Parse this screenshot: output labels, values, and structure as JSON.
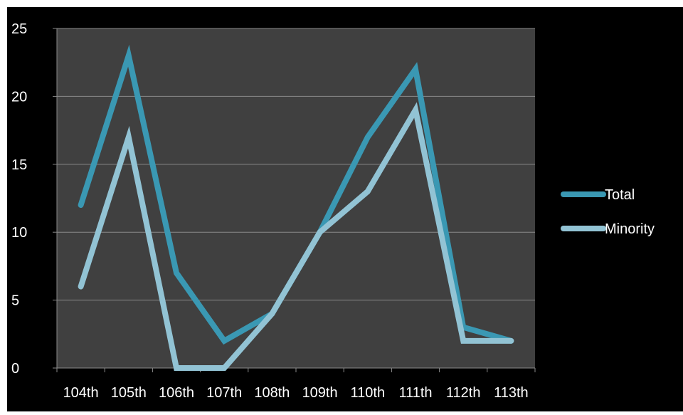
{
  "chart_data": {
    "type": "line",
    "title": "",
    "xlabel": "",
    "ylabel": "",
    "categories": [
      "104th",
      "105th",
      "106th",
      "107th",
      "108th",
      "109th",
      "110th",
      "111th",
      "112th",
      "113th"
    ],
    "ylim": [
      0,
      25
    ],
    "yticks": [
      0,
      5,
      10,
      15,
      20,
      25
    ],
    "grid": true,
    "legend_position": "right",
    "series": [
      {
        "name": "Total",
        "color": "#3a98b3",
        "values": [
          12,
          23,
          7,
          2,
          4,
          10,
          17,
          22,
          3,
          2
        ]
      },
      {
        "name": "Minority",
        "color": "#92c3d4",
        "values": [
          6,
          17,
          0,
          0,
          4,
          10,
          13,
          19,
          2,
          2
        ]
      }
    ],
    "colors": {
      "outer_background": "#000000",
      "plot_background": "#404040",
      "gridline": "#8a8a8a",
      "text": "#ffffff"
    }
  }
}
